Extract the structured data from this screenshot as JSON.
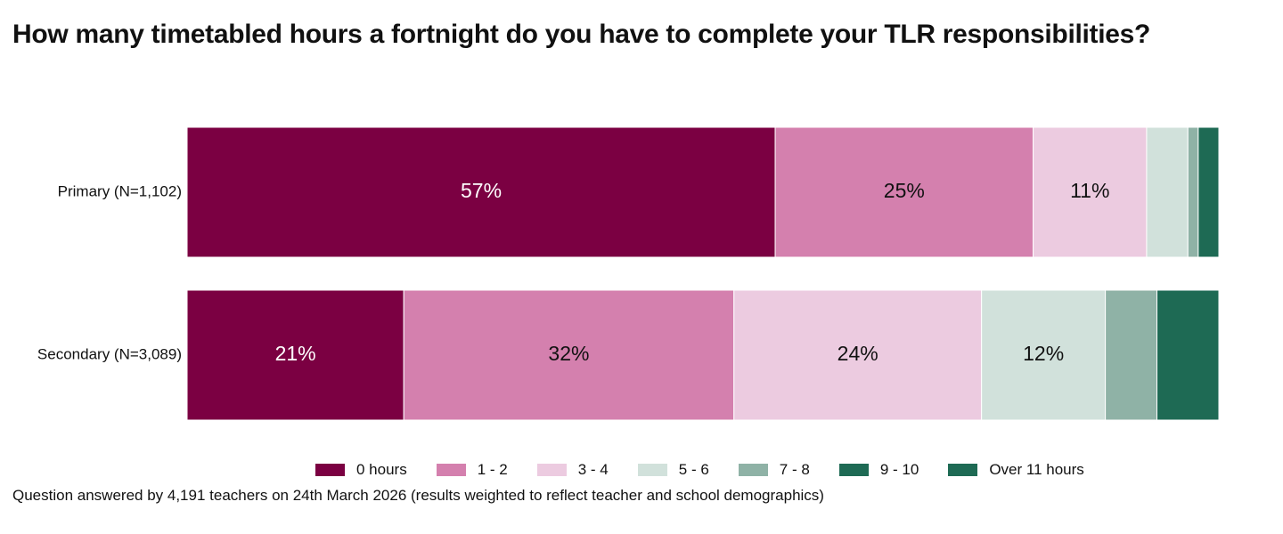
{
  "chart_data": {
    "type": "bar",
    "orientation": "horizontal",
    "stacked": true,
    "title": "How many timetabled hours a fortnight do you have to complete your TLR responsibilities?",
    "categories": [
      "Primary (N=1,102)",
      "Secondary (N=3,089)"
    ],
    "series": [
      {
        "name": "0 hours",
        "color": "#7b0042",
        "values": [
          57,
          21
        ],
        "labels": [
          "57%",
          "21%"
        ]
      },
      {
        "name": "1 - 2",
        "color": "#d480ae",
        "values": [
          25,
          32
        ],
        "labels": [
          "25%",
          "32%"
        ]
      },
      {
        "name": "3 - 4",
        "color": "#eccbe0",
        "values": [
          11,
          24
        ],
        "labels": [
          "11%",
          "24%"
        ]
      },
      {
        "name": "5 - 6",
        "color": "#d1e1db",
        "values": [
          4,
          12
        ],
        "labels": [
          "",
          "12%"
        ]
      },
      {
        "name": "7 - 8",
        "color": "#8fb2a6",
        "values": [
          1,
          5
        ],
        "labels": [
          "",
          ""
        ]
      },
      {
        "name": "9 - 10",
        "color": "#1e6a54",
        "values": [
          0,
          0
        ],
        "labels": [
          "",
          ""
        ]
      },
      {
        "name": "Over 11 hours",
        "color": "#1e6a54",
        "values": [
          2,
          6
        ],
        "labels": [
          "",
          ""
        ]
      }
    ],
    "xlim": [
      0,
      100
    ],
    "grid": false,
    "legend_position": "bottom"
  },
  "footnote": "Question answered by 4,191 teachers on 24th March 2026 (results weighted to reflect teacher and school demographics)"
}
